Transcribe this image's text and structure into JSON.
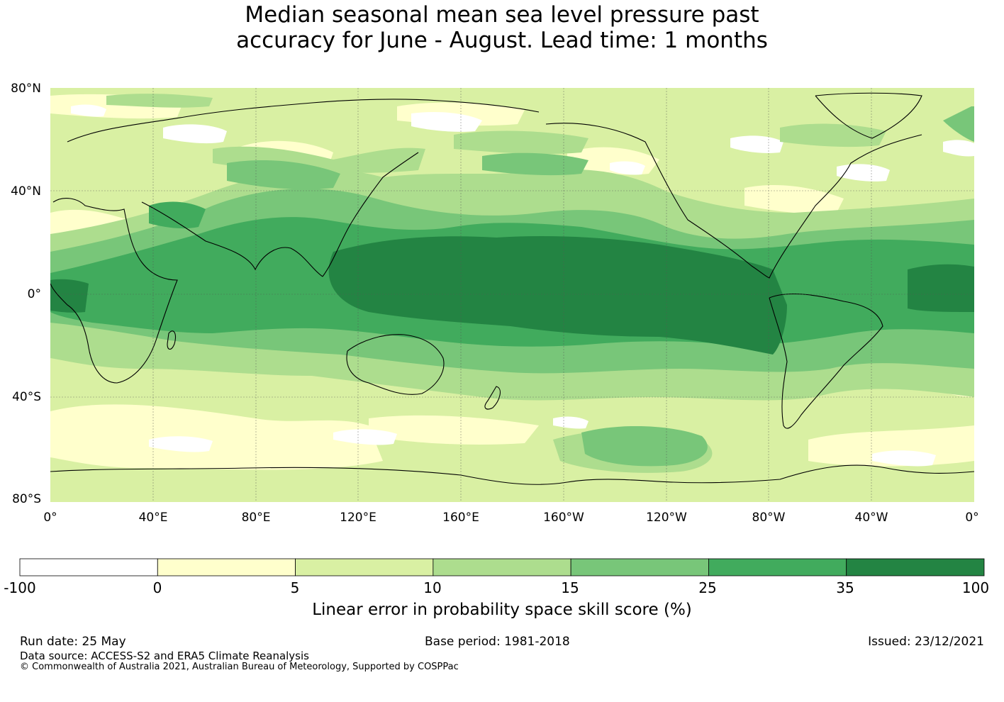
{
  "title": {
    "line1": "Median seasonal mean sea level pressure past",
    "line2": "accuracy for June - August. Lead time: 1 months"
  },
  "map": {
    "lat_labels": [
      "80°N",
      "40°N",
      "0°",
      "40°S",
      "80°S"
    ],
    "lon_labels": [
      "0°",
      "40°E",
      "80°E",
      "120°E",
      "160°E",
      "160°W",
      "120°W",
      "80°W",
      "40°W",
      "0°"
    ],
    "grid_lines": true
  },
  "colorbar": {
    "ticks": [
      "-100",
      "0",
      "5",
      "10",
      "15",
      "25",
      "35",
      "100"
    ],
    "colors": [
      "#ffffff",
      "#ffffcc",
      "#d9f0a3",
      "#addd8e",
      "#78c679",
      "#41ab5d",
      "#238443"
    ],
    "label": "Linear error in probability space skill score (%)"
  },
  "footer": {
    "run_date": "Run date: 25 May",
    "base_period": "Base period: 1981-2018",
    "issued": "Issued: 23/12/2021",
    "data_source": "Data source: ACCESS-S2 and ERA5 Climate Reanalysis",
    "copyright": "© Commonwealth of Australia 2021, Australian Bureau of Meteorology, Supported by COSPPac"
  }
}
